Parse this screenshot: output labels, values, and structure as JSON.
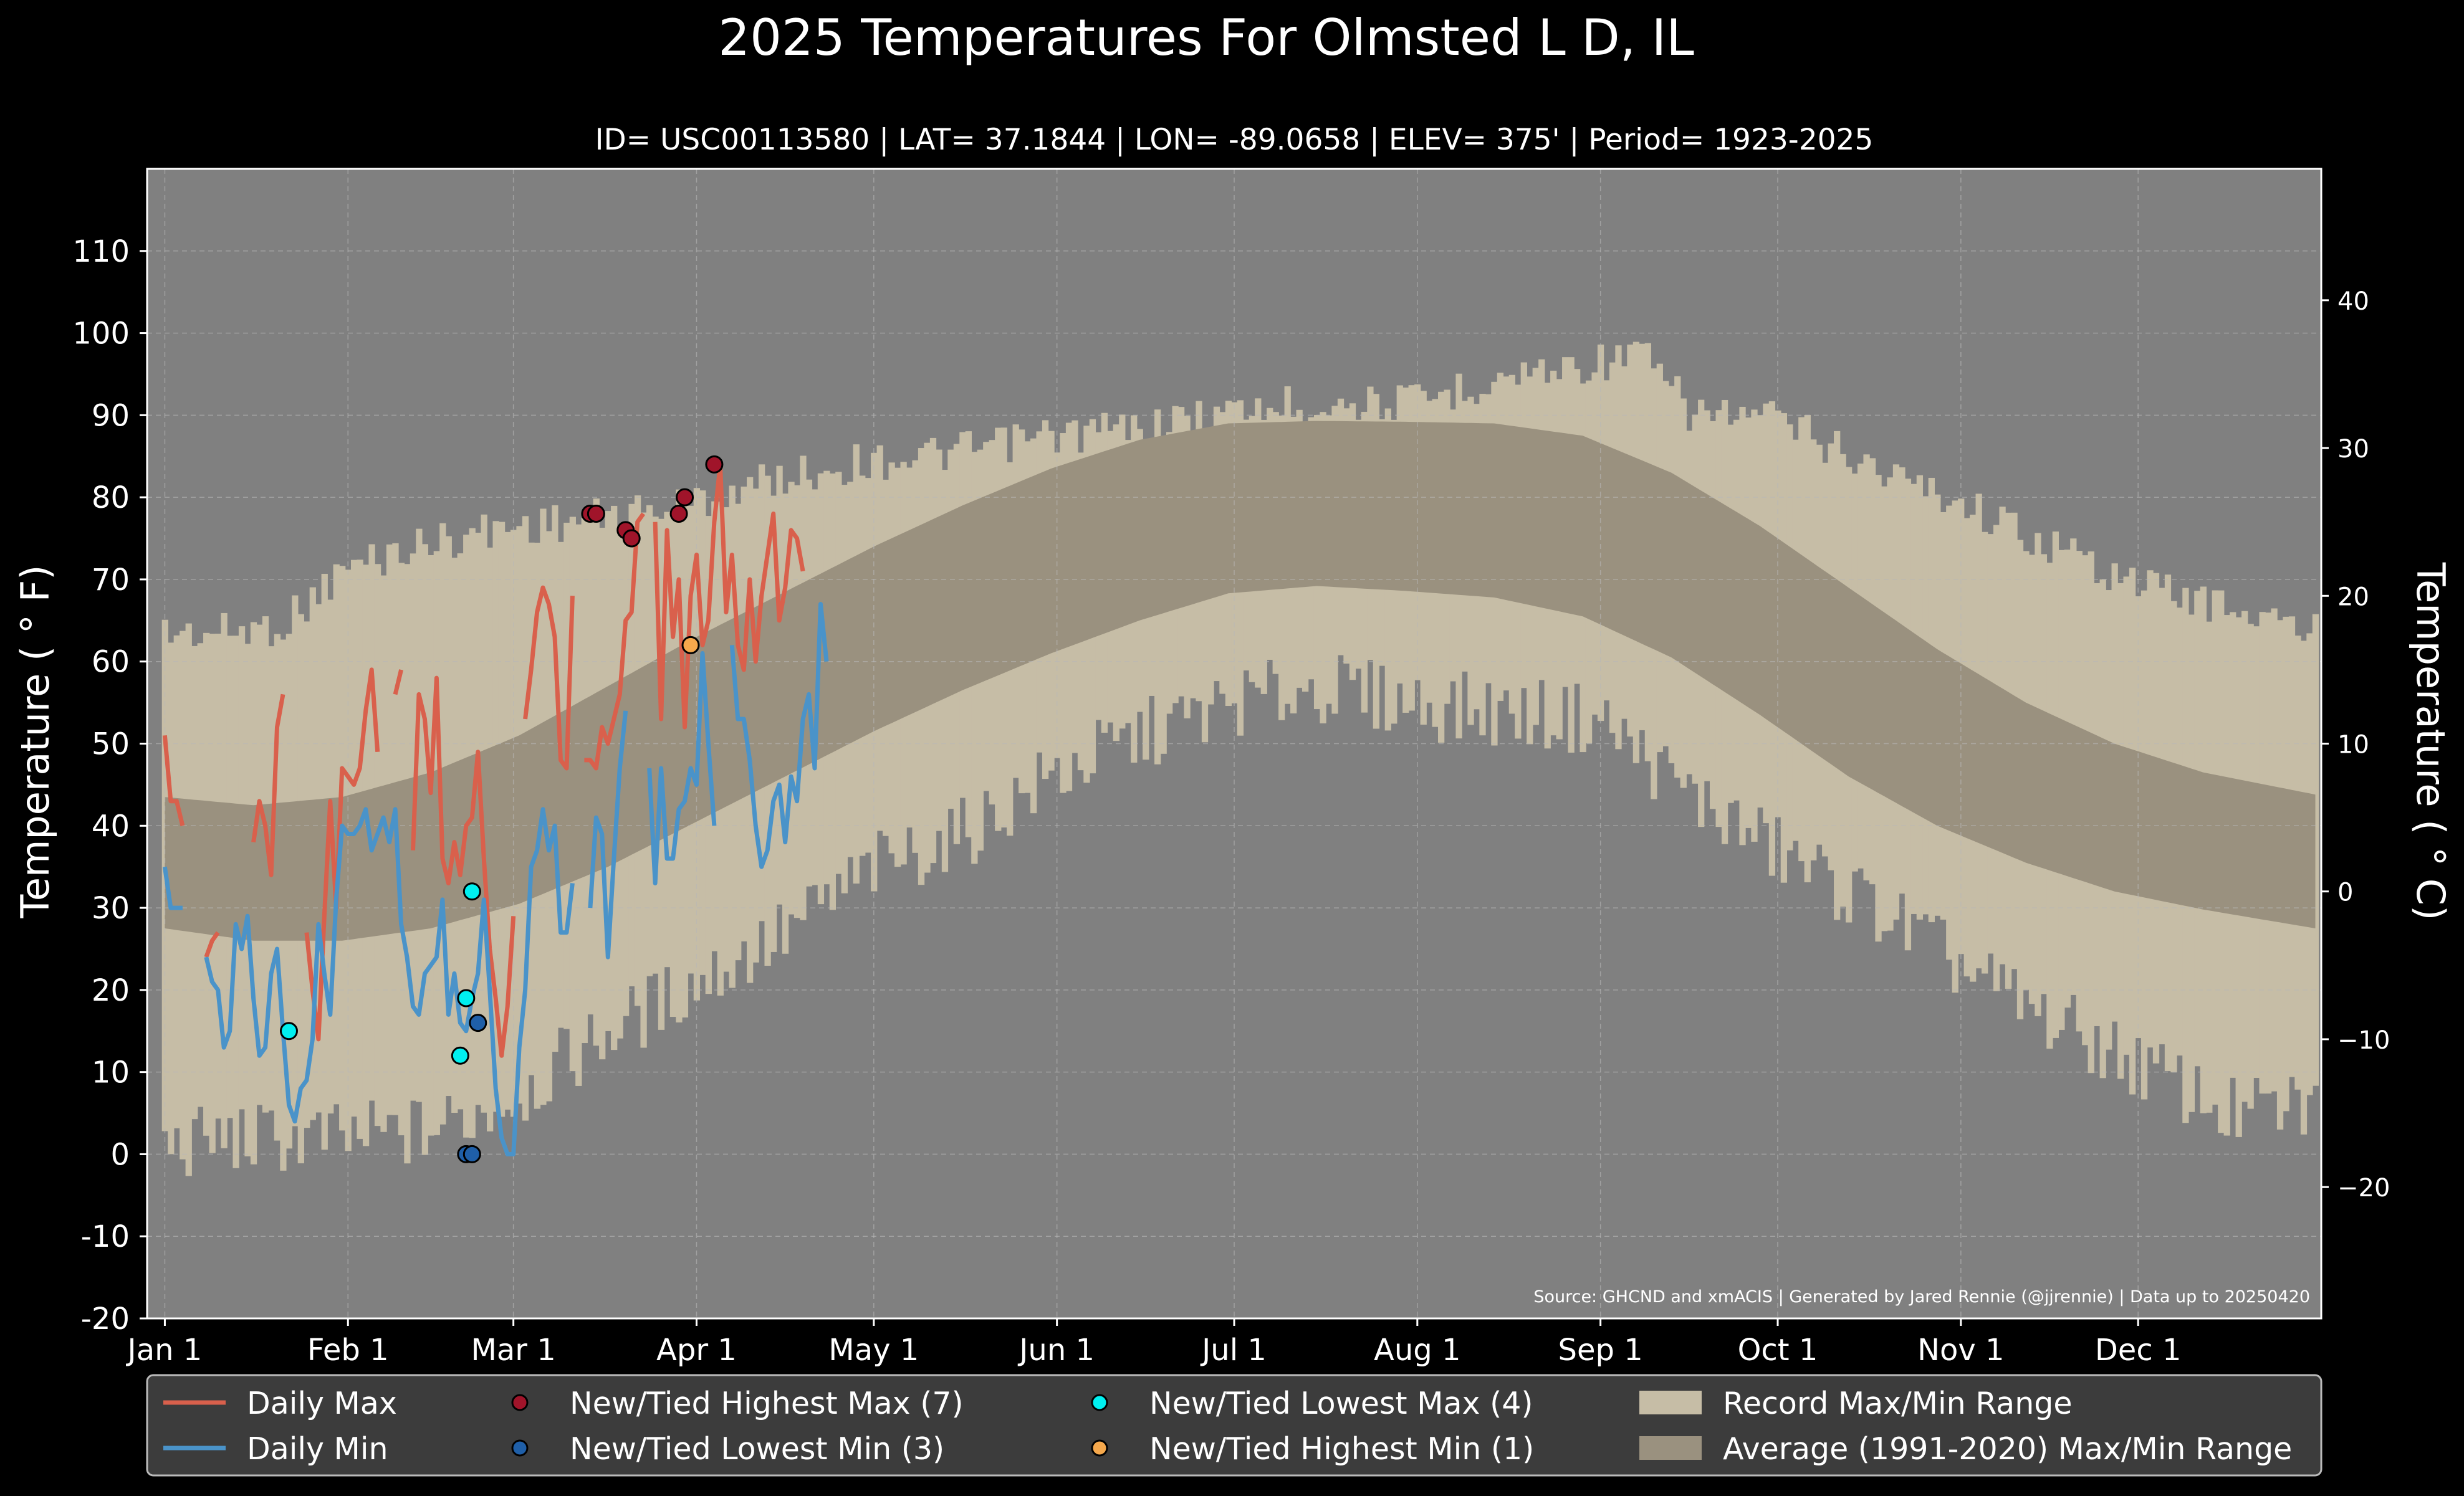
{
  "title": "2025 Temperatures For Olmsted L D, IL",
  "subtitle": "ID= USC00113580 | LAT= 37.1844 | LON= -89.0658 | ELEV= 375' | Period= 1923-2025",
  "source_note": "Source: GHCND and xmACIS | Generated by Jared Rennie (@jjrennie) | Data up to 20250420",
  "colors": {
    "background": "#000000",
    "plot_bg": "#808080",
    "record_range": "#c6bda6",
    "normal_range": "#9a917f",
    "daily_max": "#d9604c",
    "daily_min": "#4a93c9",
    "highest_max": "#a0142a",
    "lowest_min": "#1f5fa8",
    "lowest_max": "#00f0f0",
    "highest_min": "#f5a84c",
    "grid": "#b8b8b8",
    "text": "#ffffff",
    "legend_bg": "#3c3c3c"
  },
  "chart_data": {
    "type": "line",
    "title": "2025 Temperatures For Olmsted L D, IL",
    "ylabel": "Temperature ( ° F)",
    "ylabel_right": "Temperature ( ° C)",
    "xlabel": "",
    "ylim": [
      -20,
      120
    ],
    "xlim_days": [
      -3,
      365
    ],
    "yticks": [
      -20,
      -10,
      0,
      10,
      20,
      30,
      40,
      50,
      60,
      70,
      80,
      90,
      100,
      110
    ],
    "yticks_right_c": [
      -20,
      -10,
      0,
      10,
      20,
      30,
      40
    ],
    "xtick_labels": [
      "Jan 1",
      "Feb 1",
      "Mar 1",
      "Apr 1",
      "May 1",
      "Jun 1",
      "Jul 1",
      "Aug 1",
      "Sep 1",
      "Oct 1",
      "Nov 1",
      "Dec 1"
    ],
    "xtick_days": [
      0,
      31,
      59,
      90,
      120,
      151,
      181,
      212,
      243,
      273,
      304,
      334
    ],
    "grid": true,
    "legend_placement": "bottom",
    "normal_range": {
      "max_anchor_days": [
        0,
        15,
        30,
        45,
        60,
        75,
        90,
        105,
        120,
        135,
        150,
        165,
        180,
        195,
        210,
        225,
        240,
        255,
        270,
        285,
        300,
        315,
        330,
        345,
        364
      ],
      "max_anchor_values": [
        43.5,
        42.5,
        43.5,
        46.5,
        51,
        57,
        63,
        68.5,
        74,
        79,
        83.5,
        87,
        89,
        89.3,
        89.2,
        89,
        87.5,
        83,
        76.5,
        69,
        61.5,
        55,
        50,
        46.5,
        43.8
      ],
      "min_anchor_days": [
        0,
        15,
        30,
        45,
        60,
        75,
        90,
        105,
        120,
        135,
        150,
        165,
        180,
        195,
        210,
        225,
        240,
        255,
        270,
        285,
        300,
        315,
        330,
        345,
        364
      ],
      "min_anchor_values": [
        27.5,
        26,
        26,
        27.5,
        30.5,
        35,
        40.5,
        46,
        51.5,
        56.5,
        61,
        65,
        68.3,
        69.2,
        68.6,
        67.8,
        65.5,
        60.5,
        53.5,
        46,
        40,
        35.5,
        32,
        29.8,
        27.5
      ]
    },
    "record_range": {
      "max_anchor_days": [
        0,
        10,
        20,
        31,
        45,
        59,
        75,
        90,
        105,
        120,
        135,
        150,
        165,
        181,
        195,
        212,
        225,
        243,
        250,
        258,
        273,
        290,
        304,
        315,
        334,
        350,
        364
      ],
      "max_anchor_values": [
        66,
        66,
        67,
        74,
        77,
        79,
        80,
        82,
        85,
        87,
        88,
        90,
        91,
        93,
        94,
        94,
        97,
        99,
        100,
        93,
        92,
        86,
        82,
        78,
        72,
        69,
        66
      ],
      "min_anchor_days": [
        0,
        10,
        20,
        31,
        45,
        59,
        75,
        90,
        105,
        120,
        135,
        150,
        165,
        181,
        195,
        212,
        225,
        243,
        258,
        273,
        290,
        304,
        315,
        334,
        350,
        364
      ],
      "min_anchor_values": [
        0,
        1,
        1,
        1,
        2,
        6,
        14,
        20,
        26,
        34,
        38,
        45,
        50,
        54,
        56,
        54,
        53,
        52,
        43,
        36,
        29,
        22,
        17,
        10,
        4,
        5
      ]
    },
    "series": [
      {
        "name": "Daily Max",
        "start_day": 0,
        "values": [
          51,
          43,
          43,
          40,
          null,
          null,
          null,
          24,
          26,
          27,
          null,
          null,
          null,
          31,
          null,
          38,
          43,
          40,
          34,
          52,
          56,
          null,
          null,
          null,
          27,
          20,
          14,
          29,
          43,
          30,
          47,
          46,
          45,
          47,
          54,
          59,
          49,
          null,
          null,
          56,
          59,
          null,
          37,
          56,
          53,
          44,
          58,
          36,
          33,
          38,
          34,
          40,
          41,
          49,
          36,
          25,
          19,
          12,
          18,
          29,
          null,
          53,
          59,
          66,
          69,
          67,
          63,
          48,
          47,
          68,
          null,
          48,
          48,
          47,
          52,
          50,
          53,
          56,
          65,
          66,
          77,
          78,
          null,
          77,
          53,
          76,
          63,
          70,
          52,
          68,
          73,
          62,
          65,
          77,
          84,
          66,
          73,
          62,
          59,
          70,
          60,
          68,
          73,
          78,
          65,
          69,
          76,
          75,
          71
        ]
      },
      {
        "name": "Daily Min",
        "start_day": 0,
        "values": [
          35,
          30,
          30,
          30,
          null,
          null,
          null,
          24,
          21,
          20,
          13,
          15,
          28,
          25,
          29,
          19,
          12,
          13,
          22,
          25,
          15,
          6,
          4,
          8,
          9,
          14,
          28,
          22,
          17,
          31,
          40,
          39,
          39,
          40,
          42,
          37,
          39,
          41,
          38,
          42,
          28,
          24,
          18,
          17,
          22,
          23,
          24,
          31,
          17,
          22,
          16,
          15,
          19,
          22,
          31,
          20,
          8,
          2,
          0,
          0,
          13,
          20,
          35,
          37,
          42,
          37,
          40,
          27,
          27,
          33,
          null,
          null,
          30,
          41,
          39,
          24,
          36,
          47,
          54,
          null,
          null,
          null,
          47,
          33,
          47,
          36,
          36,
          42,
          43,
          47,
          45,
          61,
          50,
          40,
          null,
          null,
          62,
          53,
          53,
          48,
          40,
          35,
          37,
          43,
          45,
          38,
          46,
          43,
          53,
          56,
          47,
          67,
          60
        ]
      }
    ],
    "record_points": [
      {
        "name": "New/Tied Highest Max (7)",
        "days": [
          72,
          73,
          78,
          79,
          87,
          88,
          93
        ],
        "values": [
          78,
          78,
          76,
          75,
          78,
          80,
          84
        ]
      },
      {
        "name": "New/Tied Lowest Min (3)",
        "days": [
          51,
          52,
          53
        ],
        "values": [
          0,
          0,
          16
        ]
      },
      {
        "name": "New/Tied Lowest Max (4)",
        "days": [
          21,
          50,
          51,
          52
        ],
        "values": [
          15,
          12,
          19,
          32
        ]
      },
      {
        "name": "New/Tied Highest Min (1)",
        "days": [
          89
        ],
        "values": [
          62
        ]
      }
    ]
  },
  "legend": {
    "items": [
      {
        "label": "Daily Max",
        "kind": "line",
        "color_key": "daily_max"
      },
      {
        "label": "Daily Min",
        "kind": "line",
        "color_key": "daily_min"
      },
      {
        "label": "New/Tied Highest Max (7)",
        "kind": "dot",
        "color_key": "highest_max"
      },
      {
        "label": "New/Tied Lowest Min (3)",
        "kind": "dot",
        "color_key": "lowest_min"
      },
      {
        "label": "New/Tied Lowest Max (4)",
        "kind": "dot",
        "color_key": "lowest_max"
      },
      {
        "label": "New/Tied Highest Min (1)",
        "kind": "dot",
        "color_key": "highest_min"
      },
      {
        "label": "Record Max/Min Range",
        "kind": "patch",
        "color_key": "record_range"
      },
      {
        "label": "Average (1991-2020) Max/Min Range",
        "kind": "patch",
        "color_key": "normal_range"
      }
    ]
  }
}
